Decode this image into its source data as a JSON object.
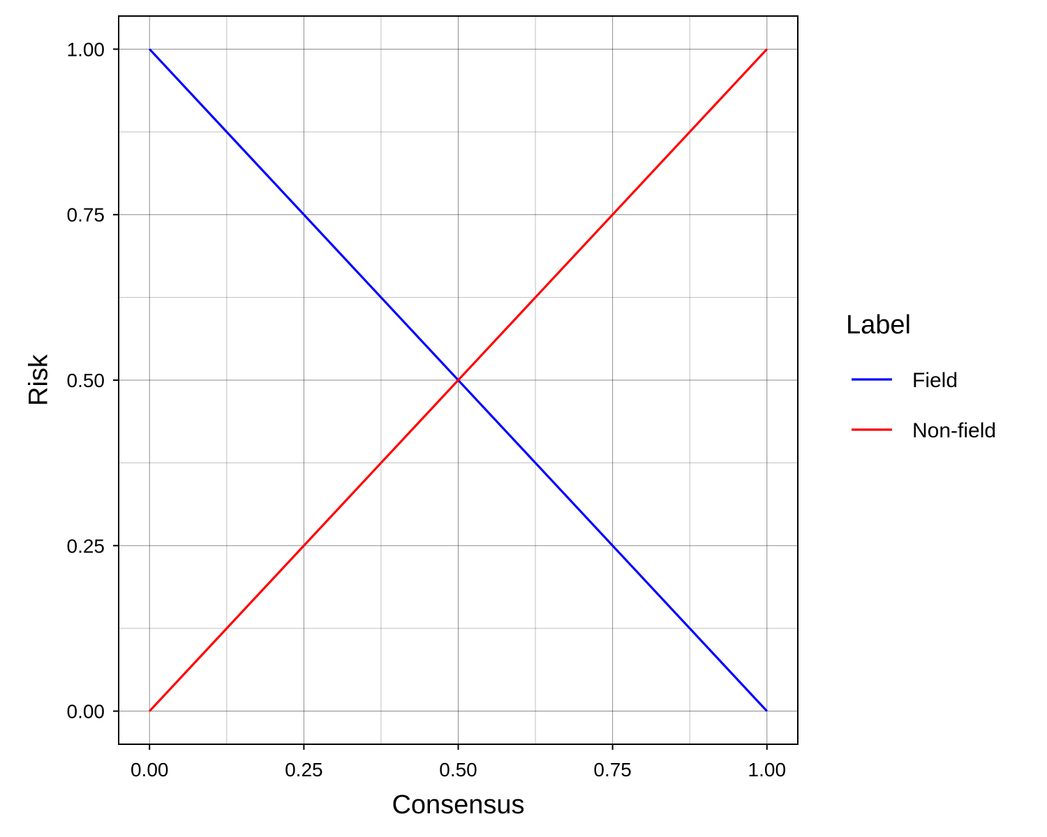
{
  "chart_data": {
    "type": "line",
    "xlabel": "Consensus",
    "ylabel": "Risk",
    "xlim": [
      -0.05,
      1.05
    ],
    "ylim": [
      -0.05,
      1.05
    ],
    "x_ticks": [
      0,
      0.25,
      0.5,
      0.75,
      1
    ],
    "x_tick_labels": [
      "0.00",
      "0.25",
      "0.50",
      "0.75",
      "1.00"
    ],
    "y_ticks": [
      0,
      0.25,
      0.5,
      0.75,
      1
    ],
    "y_tick_labels": [
      "0.00",
      "0.25",
      "0.50",
      "0.75",
      "1.00"
    ],
    "minor_grid": true,
    "grid": true,
    "legend": {
      "title": "Label",
      "placement": "right"
    },
    "series": [
      {
        "name": "Field",
        "color": "#0000ff",
        "x": [
          0,
          1
        ],
        "y": [
          1,
          0
        ]
      },
      {
        "name": "Non-field",
        "color": "#ff0000",
        "x": [
          0,
          1
        ],
        "y": [
          0,
          1
        ]
      }
    ]
  }
}
